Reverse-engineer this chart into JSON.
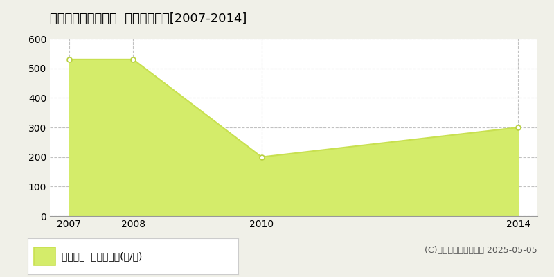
{
  "title": "寿都郡黒松内町豊幌  林地価格推移[2007-2014]",
  "years": [
    2007,
    2008,
    2010,
    2014
  ],
  "values": [
    530,
    530,
    200,
    300
  ],
  "line_color": "#c8e050",
  "fill_color": "#d4ec6a",
  "marker_color": "#ffffff",
  "marker_edge_color": "#b8d040",
  "ylim": [
    0,
    600
  ],
  "yticks": [
    0,
    100,
    200,
    300,
    400,
    500,
    600
  ],
  "xlim_left": 2007,
  "xlim_right": 2014,
  "xticks": [
    2007,
    2008,
    2010,
    2014
  ],
  "grid_color": "#bbbbbb",
  "grid_style": "--",
  "bg_color": "#f0f0e8",
  "plot_bg_color": "#ffffff",
  "legend_label": "林地価格  平均坪単価(円/坪)",
  "copyright_text": "(C)土地価格ドットコム 2025-05-05",
  "title_fontsize": 13,
  "tick_fontsize": 10,
  "legend_fontsize": 10,
  "copyright_fontsize": 9
}
